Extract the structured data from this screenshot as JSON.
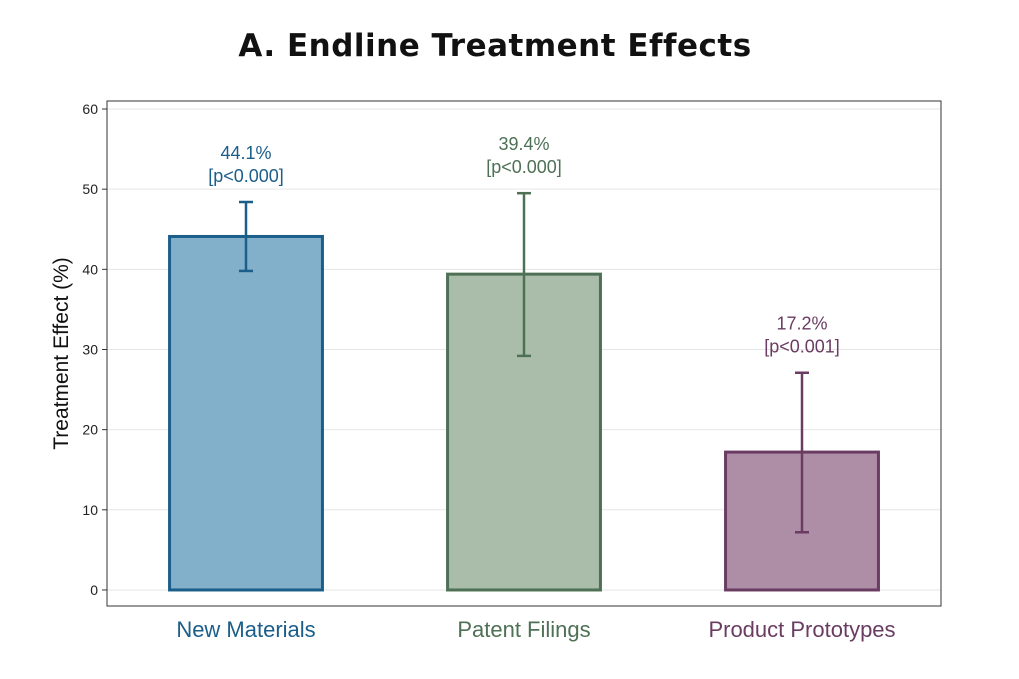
{
  "chart_data": {
    "type": "bar",
    "title": "A. Endline Treatment Effects",
    "xlabel": "",
    "ylabel": "Treatment Effect (%)",
    "ylim": [
      -2,
      61
    ],
    "yticks": [
      0,
      10,
      20,
      30,
      40,
      50,
      60
    ],
    "grid": true,
    "categories": [
      "New Materials",
      "Patent Filings",
      "Product Prototypes"
    ],
    "values": [
      44.1,
      39.4,
      17.2
    ],
    "error_low": [
      39.8,
      29.2,
      7.2
    ],
    "error_high": [
      48.4,
      49.5,
      27.1
    ],
    "value_labels": [
      "44.1%",
      "39.4%",
      "17.2%"
    ],
    "p_labels": [
      "[p<0.000]",
      "[p<0.000]",
      "[p<0.001]"
    ],
    "colors": {
      "edge": [
        "#1b5e8a",
        "#4e7055",
        "#6a3c62"
      ],
      "fill": [
        "#82b0cb",
        "#aabdab",
        "#ae8ea7"
      ]
    }
  }
}
